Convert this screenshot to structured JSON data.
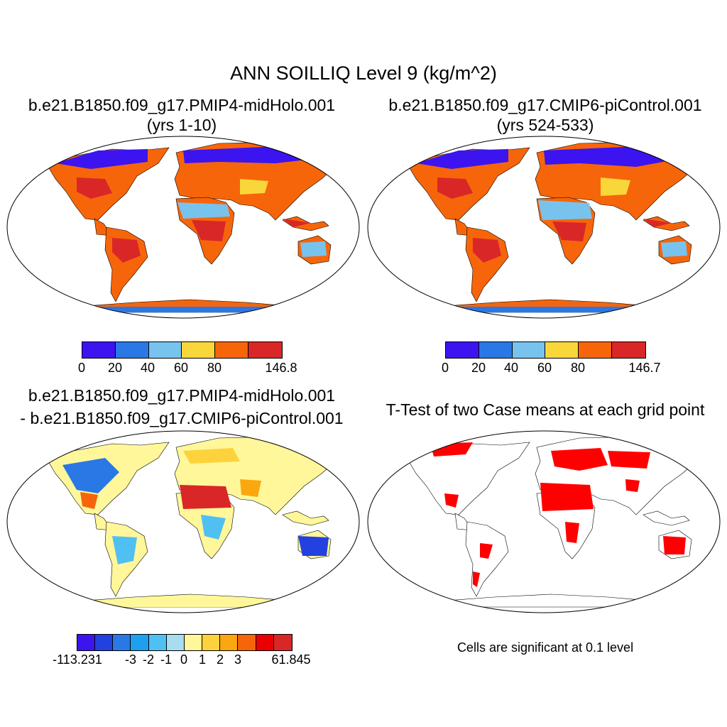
{
  "figure": {
    "title": "ANN SOILLIQ Level 9 (kg/m^2)",
    "colors": {
      "abs_scale": [
        "#3c14f0",
        "#2a78e6",
        "#78c3ee",
        "#f9d73b",
        "#f7650a",
        "#d92727"
      ],
      "diff_scale": [
        "#3c14f0",
        "#2241e0",
        "#2a78e6",
        "#1ea0f0",
        "#50c0f2",
        "#a8dcf0",
        "#fff79a",
        "#fdd23c",
        "#fba70f",
        "#f7650a",
        "#ea0000",
        "#d92727"
      ],
      "ttest_fill": "#ff0000",
      "coastline": "#000000"
    }
  },
  "panels": {
    "p1": {
      "title_line1": "b.e21.B1850.f09_g17.PMIP4-midHolo.001",
      "title_line2": "(yrs 1-10)",
      "colorbar_labels": [
        "0",
        "20",
        "40",
        "60",
        "80",
        "146.8"
      ]
    },
    "p2": {
      "title_line1": "b.e21.B1850.f09_g17.CMIP6-piControl.001",
      "title_line2": "(yrs 524-533)",
      "colorbar_labels": [
        "0",
        "20",
        "40",
        "60",
        "80",
        "146.7"
      ]
    },
    "p3": {
      "title_line1": "b.e21.B1850.f09_g17.PMIP4-midHolo.001",
      "title_line2": "- b.e21.B1850.f09_g17.CMIP6-piControl.001",
      "colorbar_labels": [
        "-113.231",
        "-3",
        "-2",
        "-1",
        "0",
        "1",
        "2",
        "3",
        "61.845"
      ]
    },
    "p4": {
      "title": "T-Test of two Case means at each grid point",
      "note": "Cells are significant at 0.1 level"
    }
  }
}
